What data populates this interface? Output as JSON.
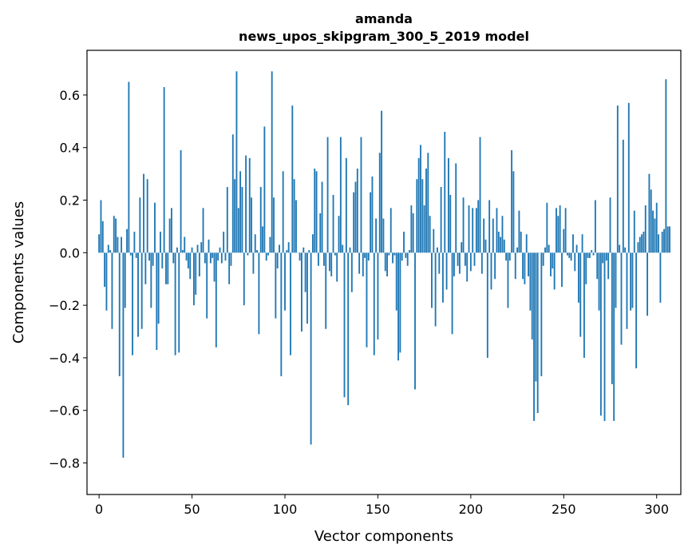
{
  "chart_data": {
    "type": "bar",
    "title_line1": "amanda",
    "title_line2": "news_upos_skipgram_300_5_2019 model",
    "xlabel": "Vector components",
    "ylabel": "Components values",
    "xlim": [
      -6.5,
      313
    ],
    "ylim": [
      -0.92,
      0.77
    ],
    "x_ticks": [
      0,
      50,
      100,
      150,
      200,
      250,
      300
    ],
    "y_ticks": [
      -0.8,
      -0.6,
      -0.4,
      -0.2,
      0.0,
      0.2,
      0.4,
      0.6
    ],
    "x_tick_labels": [
      "0",
      "50",
      "100",
      "150",
      "200",
      "250",
      "300"
    ],
    "y_tick_labels": [
      "−0.8",
      "−0.6",
      "−0.4",
      "−0.2",
      "0.0",
      "0.2",
      "0.4",
      "0.6"
    ],
    "bar_color": "#1f77b4",
    "grid": false,
    "values": [
      0.07,
      0.2,
      0.12,
      -0.13,
      -0.22,
      0.03,
      0.01,
      -0.29,
      0.14,
      0.13,
      0.06,
      -0.47,
      0.06,
      -0.78,
      -0.21,
      0.09,
      0.65,
      -0.01,
      -0.39,
      0.08,
      -0.02,
      -0.32,
      0.21,
      -0.29,
      0.3,
      -0.12,
      0.28,
      -0.03,
      -0.21,
      -0.05,
      0.19,
      -0.37,
      -0.27,
      0.08,
      -0.06,
      0.63,
      -0.12,
      -0.12,
      0.13,
      0.17,
      -0.04,
      -0.39,
      0.02,
      -0.38,
      0.39,
      0.01,
      0.06,
      -0.03,
      -0.06,
      -0.1,
      0.02,
      -0.2,
      -0.16,
      0.03,
      -0.09,
      0.04,
      0.17,
      -0.04,
      -0.25,
      0.05,
      -0.04,
      -0.02,
      -0.11,
      -0.36,
      -0.03,
      0.02,
      -0.04,
      0.08,
      -0.03,
      0.25,
      -0.12,
      -0.05,
      0.45,
      0.28,
      0.69,
      0.17,
      0.31,
      0.25,
      -0.2,
      0.37,
      -0.01,
      0.36,
      0.21,
      -0.08,
      0.07,
      0.01,
      -0.31,
      0.25,
      0.1,
      0.48,
      -0.03,
      -0.01,
      0.06,
      0.69,
      0.21,
      -0.25,
      -0.06,
      0.03,
      -0.47,
      0.31,
      -0.22,
      0.01,
      0.04,
      -0.39,
      0.56,
      0.28,
      0.2,
      0.0,
      -0.03,
      -0.3,
      0.02,
      -0.15,
      -0.27,
      0.01,
      -0.73,
      0.07,
      0.32,
      0.31,
      -0.05,
      0.15,
      0.27,
      -0.05,
      -0.29,
      0.44,
      -0.07,
      -0.09,
      0.22,
      -0.01,
      -0.11,
      0.14,
      0.44,
      0.03,
      -0.55,
      0.36,
      -0.58,
      0.02,
      -0.15,
      0.23,
      0.27,
      0.32,
      -0.08,
      0.44,
      -0.09,
      -0.02,
      -0.36,
      -0.03,
      0.23,
      0.29,
      -0.39,
      0.13,
      -0.33,
      0.38,
      0.54,
      0.13,
      -0.07,
      -0.09,
      -0.01,
      0.17,
      -0.04,
      -0.01,
      -0.22,
      -0.41,
      -0.38,
      -0.03,
      0.08,
      -0.02,
      -0.05,
      0.01,
      0.18,
      0.15,
      -0.52,
      0.28,
      0.36,
      0.41,
      0.28,
      0.18,
      0.32,
      0.38,
      0.14,
      -0.21,
      0.09,
      -0.28,
      0.02,
      -0.08,
      0.25,
      -0.19,
      0.46,
      -0.14,
      0.36,
      0.22,
      -0.31,
      -0.09,
      0.34,
      -0.05,
      -0.08,
      0.04,
      0.21,
      -0.05,
      -0.11,
      0.18,
      -0.07,
      0.17,
      -0.05,
      0.17,
      0.2,
      0.44,
      -0.08,
      0.13,
      0.05,
      -0.4,
      0.2,
      -0.14,
      0.13,
      -0.1,
      0.17,
      0.08,
      0.06,
      0.14,
      0.05,
      -0.03,
      -0.21,
      -0.03,
      0.39,
      0.31,
      -0.1,
      0.02,
      0.16,
      0.08,
      -0.1,
      -0.12,
      0.07,
      -0.09,
      -0.22,
      -0.33,
      -0.64,
      -0.49,
      -0.61,
      0.0,
      -0.47,
      -0.05,
      0.02,
      0.19,
      0.03,
      -0.09,
      -0.06,
      -0.14,
      0.17,
      0.14,
      0.18,
      -0.13,
      0.09,
      0.17,
      -0.01,
      -0.02,
      -0.03,
      0.07,
      -0.07,
      0.03,
      -0.19,
      -0.32,
      0.07,
      -0.4,
      -0.12,
      -0.02,
      -0.02,
      0.01,
      -0.01,
      0.2,
      -0.1,
      -0.22,
      -0.62,
      -0.04,
      -0.64,
      -0.03,
      -0.1,
      0.21,
      -0.5,
      -0.64,
      -0.21,
      0.56,
      0.03,
      -0.35,
      0.43,
      0.02,
      -0.29,
      0.57,
      -0.22,
      -0.21,
      0.16,
      -0.44,
      0.04,
      0.06,
      0.07,
      0.08,
      0.18,
      -0.24,
      0.3,
      0.24,
      0.16,
      0.13,
      0.19,
      0.07,
      -0.19,
      0.08,
      0.09,
      0.66,
      0.1,
      0.1
    ]
  }
}
